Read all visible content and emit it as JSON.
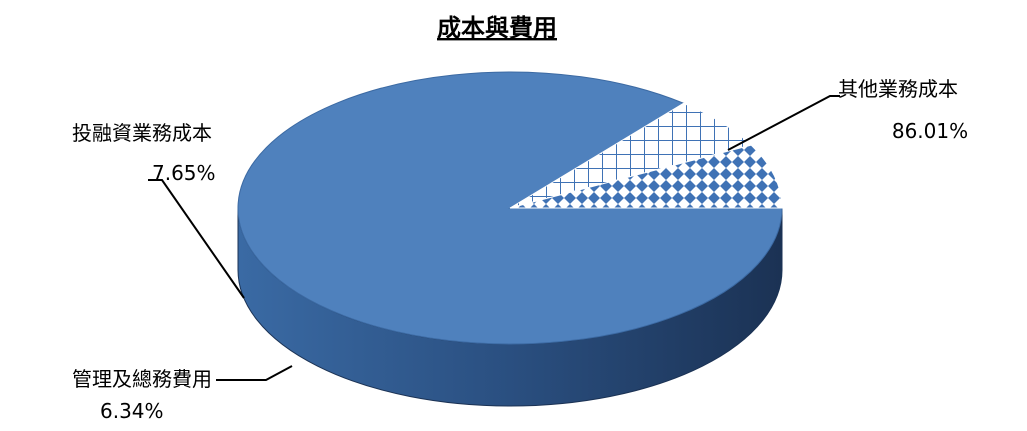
{
  "chart_data": {
    "type": "pie",
    "title": "成本與費用",
    "slices": [
      {
        "label": "其他業務成本",
        "value": 86.01,
        "value_label": "86.01%",
        "color": "#4f81bd",
        "pattern": "solid"
      },
      {
        "label": "管理及總務費用",
        "value": 6.34,
        "value_label": "6.34%",
        "color": "#3f72b5",
        "pattern": "grid"
      },
      {
        "label": "投融資業務成本",
        "value": 7.65,
        "value_label": "7.65%",
        "color": "#3f72b5",
        "pattern": "diamond"
      }
    ],
    "style": "3d"
  }
}
